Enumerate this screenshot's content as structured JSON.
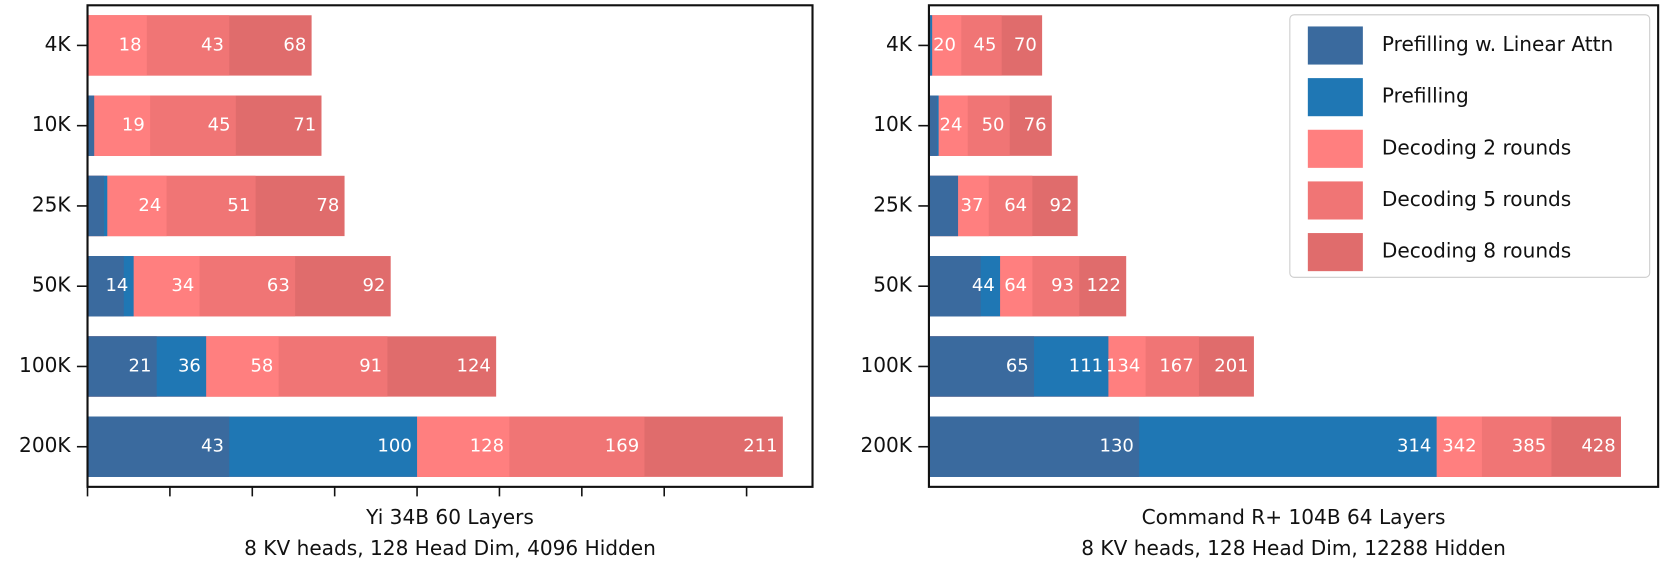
{
  "chart_data": [
    {
      "type": "barh_overlap",
      "xlabel": [
        "Yi 34B 60 Layers",
        "8 KV heads, 128 Head Dim, 4096 Hidden"
      ],
      "categories": [
        "4K",
        "10K",
        "25K",
        "50K",
        "100K",
        "200K"
      ],
      "xlim": [
        0,
        220
      ],
      "xticks": [
        0,
        25,
        50,
        75,
        100,
        125,
        150,
        175,
        200
      ],
      "series": [
        {
          "name": "Prefilling w. Linear Attn",
          "color": "#3a6a9e",
          "values": [
            0,
            2,
            5,
            11,
            21,
            43
          ],
          "value_labels": [
            null,
            null,
            null,
            null,
            "21",
            "43"
          ]
        },
        {
          "name": "Prefilling",
          "color": "#1f77b4",
          "values": [
            0,
            2,
            6,
            14,
            36,
            100
          ],
          "value_labels": [
            null,
            null,
            null,
            "14",
            "36",
            "100"
          ]
        },
        {
          "name": "Decoding 2 rounds",
          "color": "#ff7f7f",
          "values": [
            18,
            19,
            24,
            34,
            58,
            128
          ],
          "value_labels": [
            "18",
            "19",
            "24",
            "34",
            "58",
            "128"
          ]
        },
        {
          "name": "Decoding 5 rounds",
          "color": "#f07575",
          "values": [
            43,
            45,
            51,
            63,
            91,
            169
          ],
          "value_labels": [
            "43",
            "45",
            "51",
            "63",
            "91",
            "169"
          ]
        },
        {
          "name": "Decoding 8 rounds",
          "color": "#e06c6c",
          "values": [
            68,
            71,
            78,
            92,
            124,
            211
          ],
          "value_labels": [
            "68",
            "71",
            "78",
            "92",
            "124",
            "211"
          ]
        }
      ]
    },
    {
      "type": "barh_overlap",
      "xlabel": [
        "Command R+ 104B 64 Layers",
        "8 KV heads, 128 Head Dim, 12288 Hidden"
      ],
      "categories": [
        "4K",
        "10K",
        "25K",
        "50K",
        "100K",
        "200K"
      ],
      "xlim": [
        0,
        451
      ],
      "legend": "upper right",
      "series": [
        {
          "name": "Prefilling w. Linear Attn",
          "color": "#3a6a9e",
          "values": [
            1,
            5,
            18,
            32,
            65,
            130
          ],
          "value_labels": [
            null,
            null,
            null,
            null,
            "65",
            "130"
          ]
        },
        {
          "name": "Prefilling",
          "color": "#1f77b4",
          "values": [
            2,
            6,
            18,
            44,
            111,
            314
          ],
          "value_labels": [
            null,
            null,
            null,
            "44",
            "111",
            "314"
          ]
        },
        {
          "name": "Decoding 2 rounds",
          "color": "#ff7f7f",
          "values": [
            20,
            24,
            37,
            64,
            134,
            342
          ],
          "value_labels": [
            "20",
            "24",
            "37",
            "64",
            "134",
            "342"
          ]
        },
        {
          "name": "Decoding 5 rounds",
          "color": "#f07575",
          "values": [
            45,
            50,
            64,
            93,
            167,
            385
          ],
          "value_labels": [
            "45",
            "50",
            "64",
            "93",
            "167",
            "385"
          ]
        },
        {
          "name": "Decoding 8 rounds",
          "color": "#e06c6c",
          "values": [
            70,
            76,
            92,
            122,
            201,
            428
          ],
          "value_labels": [
            "70",
            "76",
            "92",
            "122",
            "201",
            "428"
          ]
        }
      ]
    }
  ]
}
